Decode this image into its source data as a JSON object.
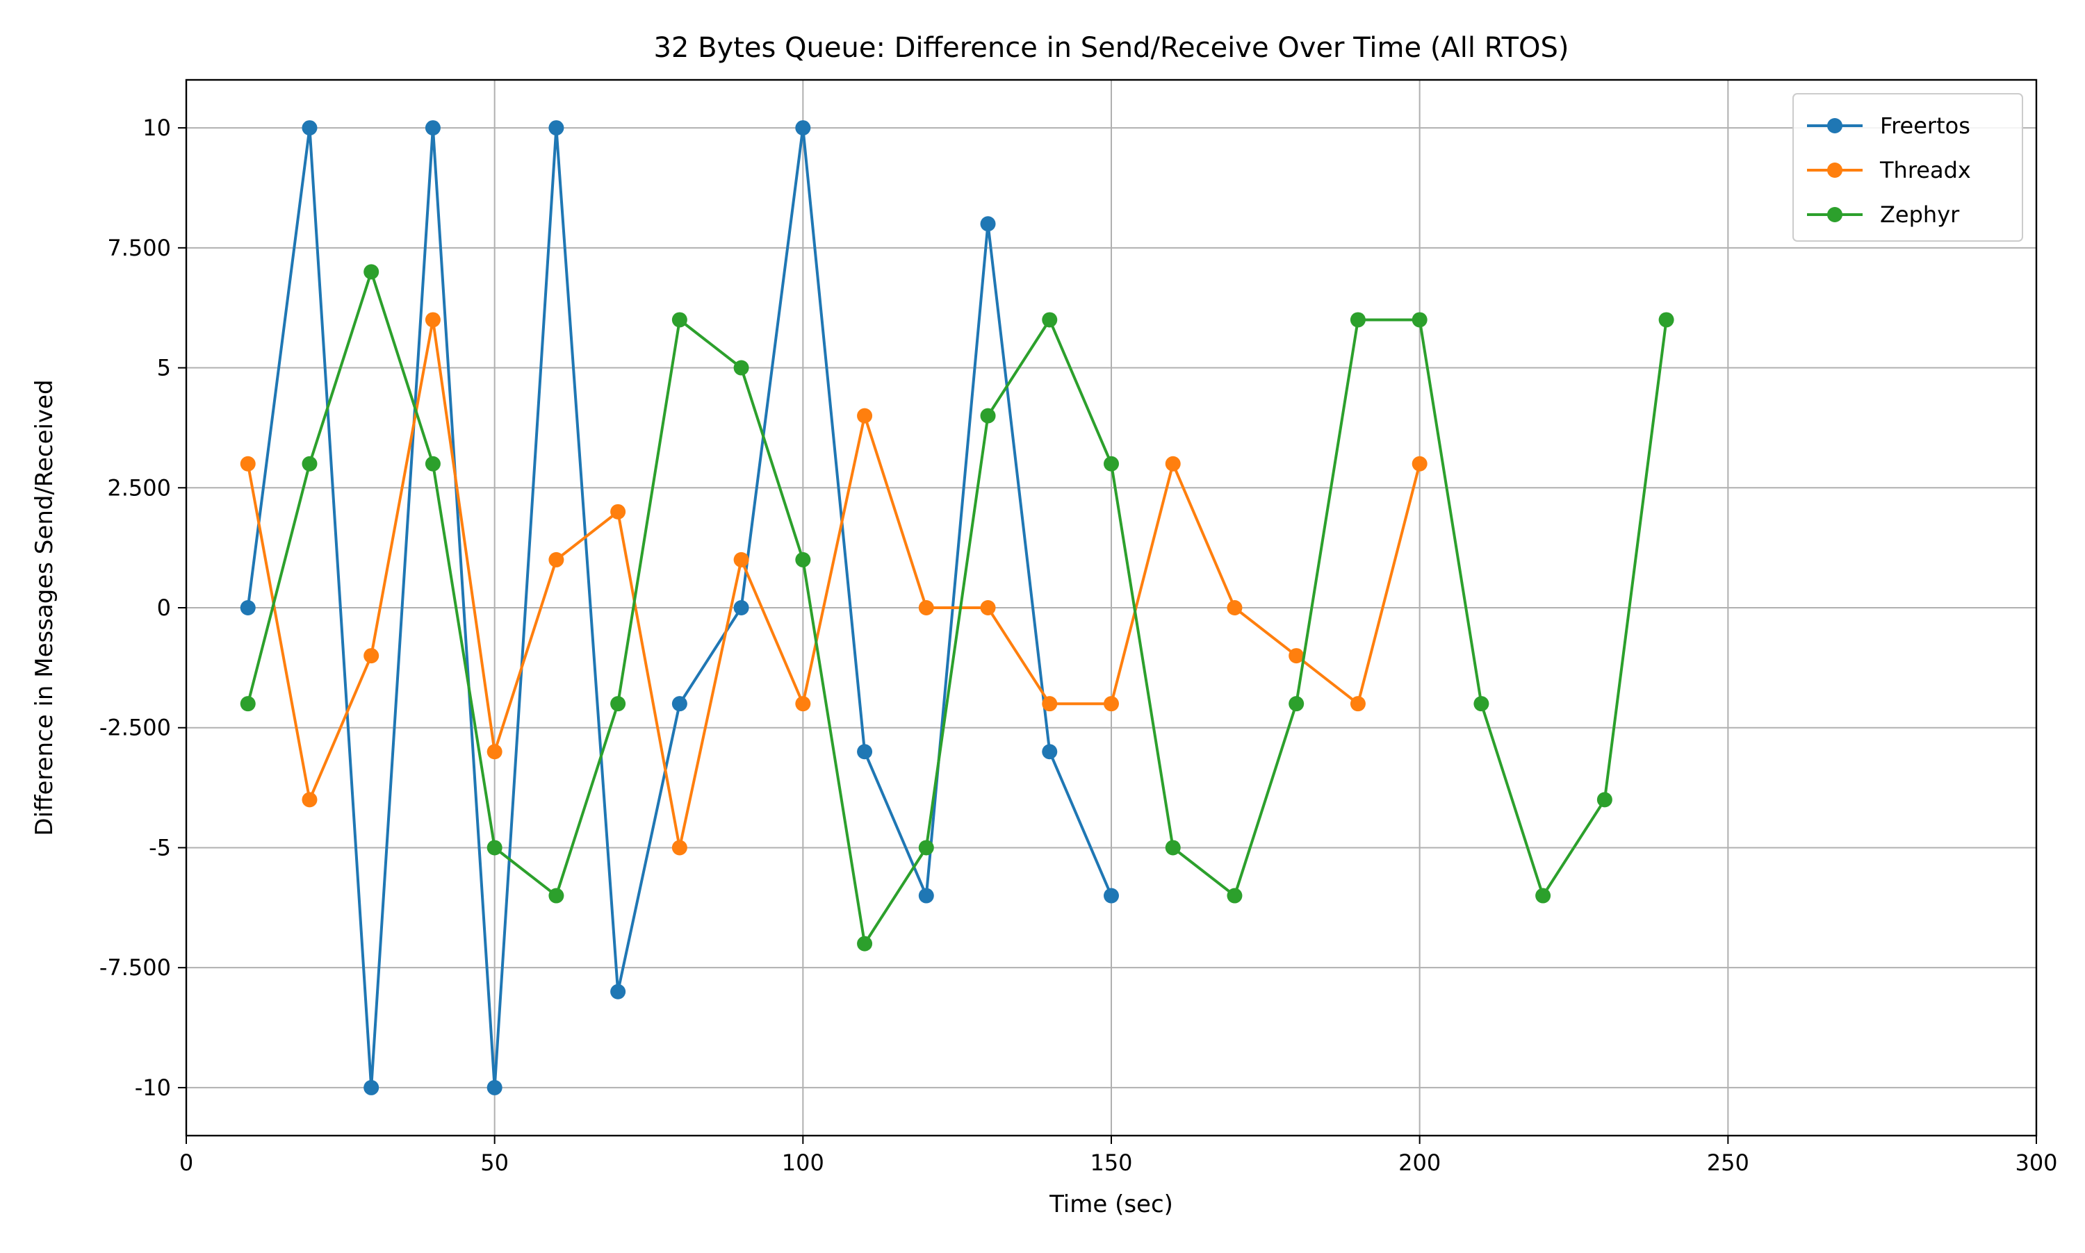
{
  "chart_data": {
    "type": "line",
    "title": "32 Bytes Queue: Difference in Send/Receive Over Time (All RTOS)",
    "xlabel": "Time (sec)",
    "ylabel": "Difference in Messages Send/Received",
    "xlim": [
      0,
      300
    ],
    "ylim": [
      -11,
      11
    ],
    "xticks": [
      0,
      50,
      100,
      150,
      200,
      250,
      300
    ],
    "xtick_labels": [
      "0",
      "50",
      "100",
      "150",
      "200",
      "250",
      "300"
    ],
    "yticks": [
      -10,
      -7.5,
      -5,
      -2.5,
      0,
      2.5,
      5,
      7.5,
      10
    ],
    "ytick_labels": [
      "-10",
      "-7.500",
      "-5",
      "-2.500",
      "0",
      "2.500",
      "5",
      "7.500",
      "10"
    ],
    "grid": true,
    "legend_position": "top-right",
    "series": [
      {
        "name": "Freertos",
        "color": "#1f77b4",
        "x": [
          10,
          20,
          30,
          40,
          50,
          60,
          70,
          80,
          90,
          100,
          110,
          120,
          130,
          140,
          150
        ],
        "y": [
          0,
          10,
          -10,
          10,
          -10,
          10,
          -8,
          -2,
          0,
          10,
          -3,
          -6,
          8,
          -3,
          -6
        ]
      },
      {
        "name": "Threadx",
        "color": "#ff7f0e",
        "x": [
          10,
          20,
          30,
          40,
          50,
          60,
          70,
          80,
          90,
          100,
          110,
          120,
          130,
          140,
          150,
          160,
          170,
          180,
          190,
          200
        ],
        "y": [
          3,
          -4,
          -1,
          6,
          -3,
          1,
          2,
          -5,
          1,
          -2,
          4,
          0,
          0,
          -2,
          -2,
          3,
          0,
          -1,
          -2,
          3
        ]
      },
      {
        "name": "Zephyr",
        "color": "#2ca02c",
        "x": [
          10,
          20,
          30,
          40,
          50,
          60,
          70,
          80,
          90,
          100,
          110,
          120,
          130,
          140,
          150,
          160,
          170,
          180,
          190,
          200,
          210,
          220,
          230,
          240
        ],
        "y": [
          -2,
          3,
          7,
          3,
          -5,
          -6,
          -2,
          6,
          5,
          1,
          -7,
          -5,
          4,
          6,
          3,
          -5,
          -6,
          -2,
          6,
          6,
          -2,
          -6,
          -4,
          6
        ]
      }
    ]
  }
}
